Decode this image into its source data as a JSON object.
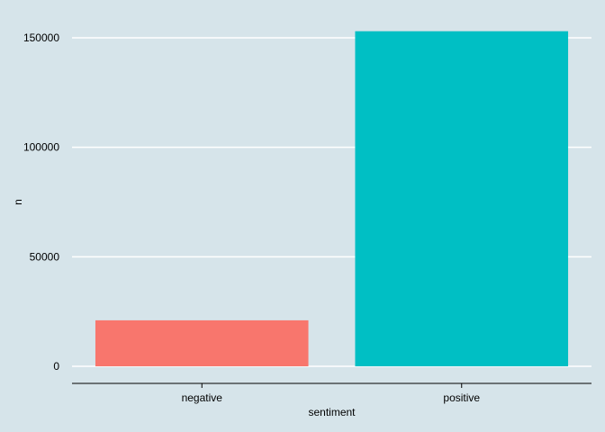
{
  "chart_data": {
    "type": "bar",
    "categories": [
      "negative",
      "positive"
    ],
    "values": [
      21000,
      153000
    ],
    "colors": [
      "#f8766d",
      "#00bfc4"
    ],
    "xlabel": "sentiment",
    "ylabel": "n",
    "ylim": [
      0,
      160000
    ],
    "yticks": [
      0,
      50000,
      100000,
      150000
    ],
    "ytick_labels": [
      "0",
      "50000",
      "100000",
      "150000"
    ],
    "grid": "horizontal",
    "background": "#d6e4ea",
    "grid_color": "#ffffff"
  }
}
